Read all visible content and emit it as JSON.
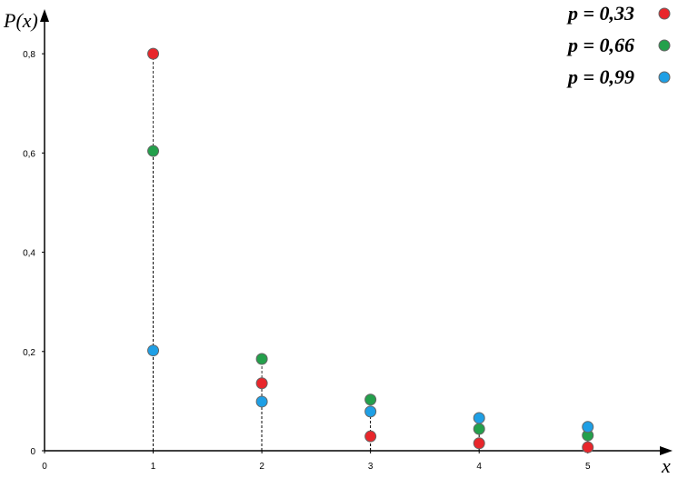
{
  "chart_data": {
    "type": "scatter",
    "y_label": "P(x)",
    "x_label": "x",
    "x": [
      1,
      2,
      3,
      4,
      5
    ],
    "series": [
      {
        "name": "p = 0,33",
        "color": "#e8262b",
        "values": [
          0.8,
          0.136,
          0.029,
          0.015,
          0.007
        ]
      },
      {
        "name": "p = 0,66",
        "color": "#23a04b",
        "values": [
          0.604,
          0.185,
          0.103,
          0.044,
          0.031
        ]
      },
      {
        "name": "p = 0,99",
        "color": "#1e9fe5",
        "values": [
          0.202,
          0.099,
          0.079,
          0.066,
          0.048
        ]
      }
    ],
    "xlim": [
      0,
      5.78
    ],
    "ylim": [
      0,
      0.89
    ],
    "xticks": [
      0,
      1,
      2,
      3,
      4,
      5
    ],
    "yticks": [
      0,
      {
        "value": 0.2,
        "label": "0,2"
      },
      {
        "value": 0.4,
        "label": "0,4"
      },
      {
        "value": 0.6,
        "label": "0,6"
      },
      {
        "value": 0.8,
        "label": "0,8"
      }
    ],
    "stems": true,
    "legend": "top-right"
  }
}
